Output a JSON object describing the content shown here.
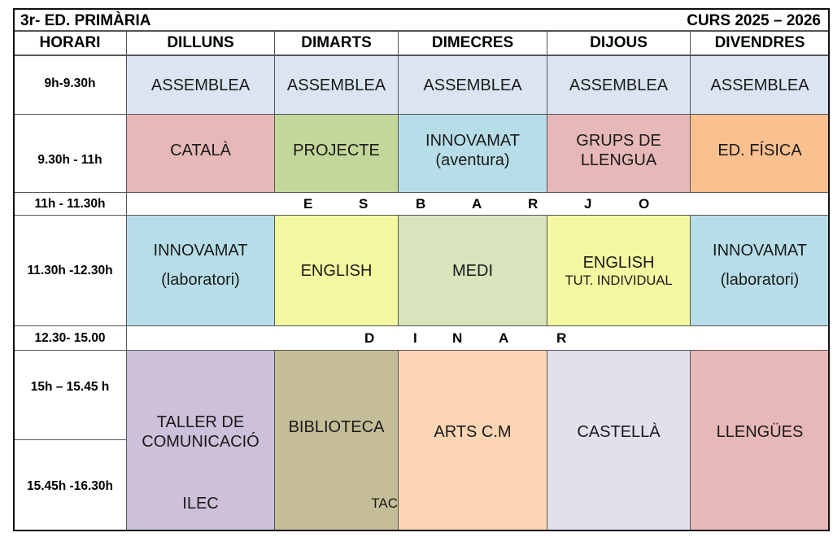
{
  "title": "3r- ED. PRIMÀRIA",
  "course": "CURS 2025 – 2026",
  "headers": [
    "HORARI",
    "DILLUNS",
    "DIMARTS",
    "DIMECRES",
    "DIJOUS",
    "DIVENDRES"
  ],
  "times": [
    "9h-9.30h",
    "9.30h - 11h",
    "11h - 11.30h",
    "11.30h -12.30h",
    "12.30- 15.00",
    "15h – 15.45 h",
    "15.45h -16.30h"
  ],
  "break_letters": [
    "E",
    "S",
    "B",
    "A",
    "R",
    "J",
    "O"
  ],
  "lunch_letters": [
    "D",
    "I",
    "N",
    "A",
    "R"
  ],
  "rows": {
    "r1": [
      "ASSEMBLEA",
      "ASSEMBLEA",
      "ASSEMBLEA",
      "ASSEMBLEA",
      "ASSEMBLEA"
    ],
    "r2": [
      "CATALÀ",
      "PROJECTE",
      "INNOVAMAT",
      "GRUPS DE",
      "ED. FÍSICA"
    ],
    "r2b": {
      "wed": "(aventura)",
      "thu": "LLENGUA"
    },
    "r3": [
      "INNOVAMAT",
      "ENGLISH",
      "MEDI",
      "ENGLISH",
      "INNOVAMAT"
    ],
    "r3b": {
      "mon": "(laboratori)",
      "thu": "TUT. INDIVIDUAL",
      "fri": "(laboratori)"
    },
    "r4": [
      "TALLER DE",
      "BIBLIOTECA",
      "ARTS C.M",
      "CASTELLÀ",
      "LLENGÜES"
    ],
    "r4b": {
      "mon": "COMUNICACIÓ",
      "mon_extra": "ILEC",
      "tue_extra": "TAC"
    }
  },
  "colors": {
    "assemblea": "#dbe5f1",
    "catala": "#e6b8b7",
    "projecte": "#c4d79b",
    "innovamat": "#b7dee8",
    "edfisica": "#fac090",
    "english": "#f4f8a0",
    "medi": "#d8e4bc",
    "taller": "#ccc0da",
    "biblioteca": "#c4bd97",
    "arts": "#fcd5b4",
    "castella": "#e4dfec",
    "llengues": "#e6b8b7"
  }
}
